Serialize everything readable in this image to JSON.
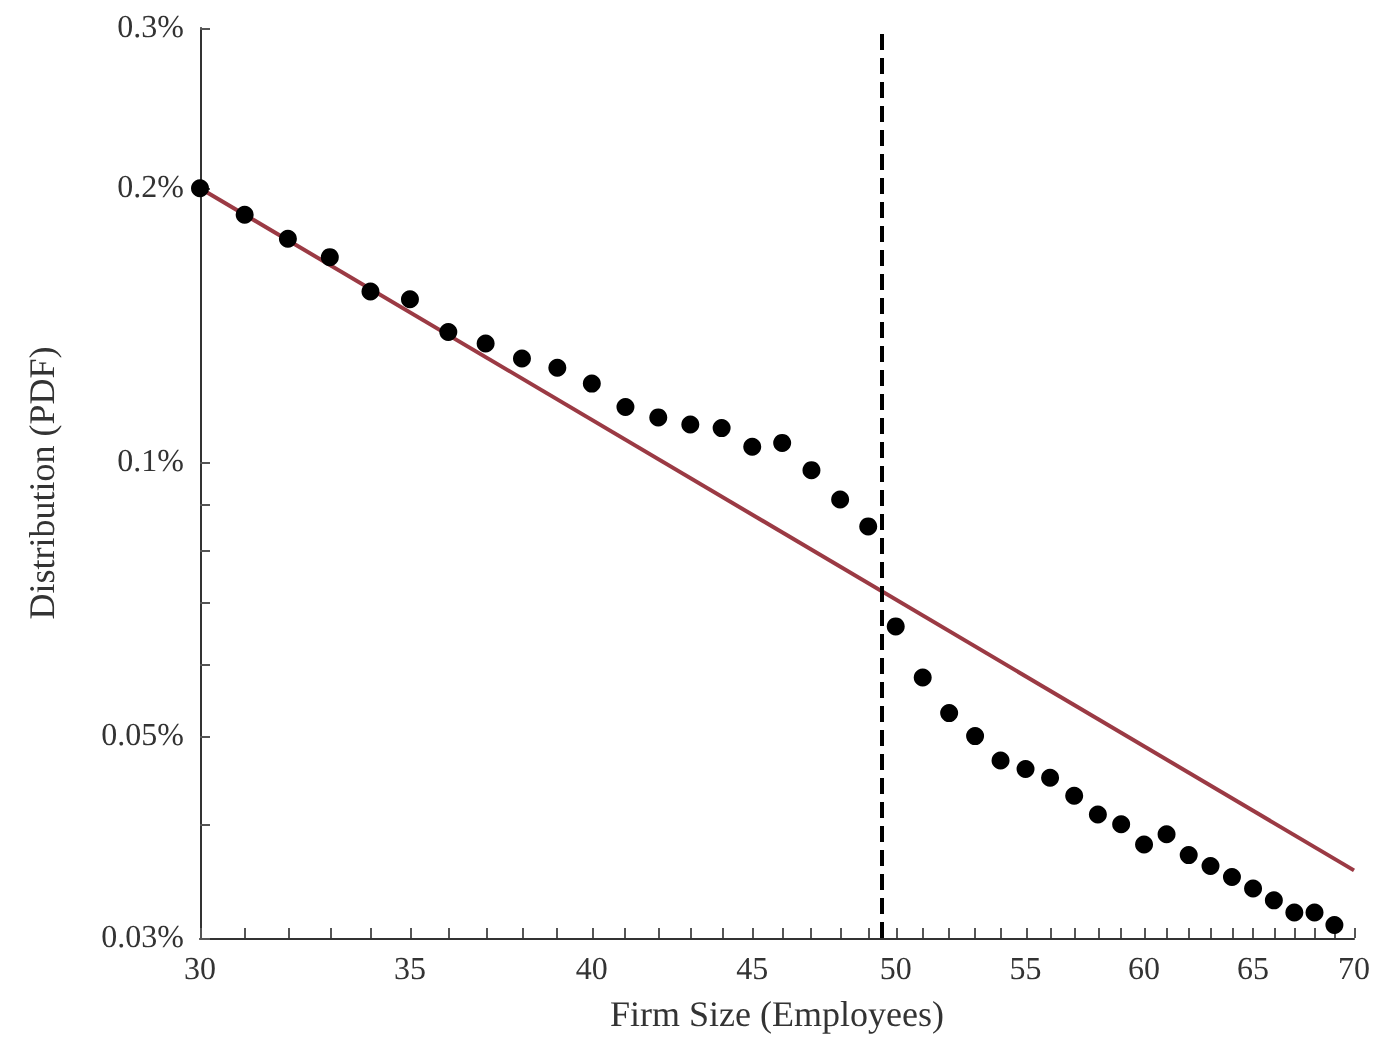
{
  "chart_data": {
    "type": "scatter",
    "xlabel": "Firm Size (Employees)",
    "ylabel": "Distribution (PDF)",
    "log": "xy",
    "grid": false,
    "marker": "circle",
    "xlim": [
      30,
      70
    ],
    "ylim": [
      0.03,
      0.3
    ],
    "xticks": [
      30,
      {
        "value": 31,
        "label": null
      },
      {
        "value": 32,
        "label": null
      },
      {
        "value": 33,
        "label": null
      },
      {
        "value": 34,
        "label": null
      },
      35,
      {
        "value": 36,
        "label": null
      },
      {
        "value": 37,
        "label": null
      },
      {
        "value": 38,
        "label": null
      },
      {
        "value": 39,
        "label": null
      },
      40,
      {
        "value": 41,
        "label": null
      },
      {
        "value": 42,
        "label": null
      },
      {
        "value": 43,
        "label": null
      },
      {
        "value": 44,
        "label": null
      },
      45,
      {
        "value": 46,
        "label": null
      },
      {
        "value": 47,
        "label": null
      },
      {
        "value": 48,
        "label": null
      },
      {
        "value": 49,
        "label": null
      },
      50,
      {
        "value": 51,
        "label": null
      },
      {
        "value": 52,
        "label": null
      },
      {
        "value": 53,
        "label": null
      },
      {
        "value": 54,
        "label": null
      },
      55,
      {
        "value": 56,
        "label": null
      },
      {
        "value": 57,
        "label": null
      },
      {
        "value": 58,
        "label": null
      },
      {
        "value": 59,
        "label": null
      },
      60,
      {
        "value": 61,
        "label": null
      },
      {
        "value": 62,
        "label": null
      },
      {
        "value": 63,
        "label": null
      },
      {
        "value": 64,
        "label": null
      },
      65,
      {
        "value": 66,
        "label": null
      },
      {
        "value": 67,
        "label": null
      },
      {
        "value": 68,
        "label": null
      },
      {
        "value": 69,
        "label": null
      },
      70
    ],
    "yticks": [
      {
        "value": 0.03,
        "label": "0.03%"
      },
      {
        "value": 0.04,
        "label": null
      },
      {
        "value": 0.05,
        "label": "0.05%"
      },
      {
        "value": 0.06,
        "label": null
      },
      {
        "value": 0.07,
        "label": null
      },
      {
        "value": 0.08,
        "label": null
      },
      {
        "value": 0.09,
        "label": null
      },
      {
        "value": 0.1,
        "label": "0.1%"
      },
      {
        "value": 0.2,
        "label": "0.2%"
      },
      {
        "value": 0.3,
        "label": "0.3%"
      }
    ],
    "ref_lines": [
      {
        "axis": "x",
        "value": 49.5,
        "color": "#000000",
        "line_style": "dashed"
      }
    ],
    "series": [
      {
        "color": "#000000",
        "x": [
          30,
          31,
          32,
          33,
          34,
          35,
          36,
          37,
          38,
          39,
          40,
          41,
          42,
          43,
          44,
          45,
          46,
          47,
          48,
          49,
          50,
          51,
          52,
          53,
          54,
          55,
          56,
          57,
          58,
          59,
          60,
          61,
          62,
          63,
          64,
          65,
          66,
          67,
          68,
          69
        ],
        "values": [
          0.2,
          0.187,
          0.176,
          0.168,
          0.154,
          0.151,
          0.139,
          0.135,
          0.13,
          0.127,
          0.122,
          0.115,
          0.112,
          0.11,
          0.109,
          0.104,
          0.105,
          0.098,
          0.091,
          0.085,
          0.066,
          0.058,
          0.053,
          0.05,
          0.047,
          0.046,
          0.045,
          0.043,
          0.041,
          0.04,
          0.038,
          0.039,
          0.037,
          0.036,
          0.035,
          0.034,
          0.033,
          0.032,
          0.032,
          0.031
        ]
      },
      {
        "type": "line",
        "color": "#9b3a44",
        "marker": "none",
        "line_style": "solid",
        "x": [
          30,
          70
        ],
        "values": [
          0.2,
          0.0356
        ]
      }
    ]
  }
}
